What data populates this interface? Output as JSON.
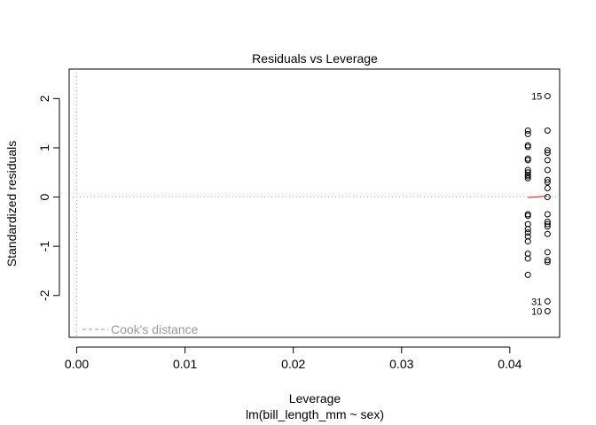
{
  "chart_data": {
    "type": "scatter",
    "title": "Residuals vs Leverage",
    "xlabel": "Leverage",
    "subtitle": "lm(bill_length_mm ~ sex)",
    "ylabel": "Standardized residuals",
    "xlim": [
      -0.0007,
      0.0446
    ],
    "ylim": [
      -2.85,
      2.6
    ],
    "xticks": [
      "0.00",
      "0.01",
      "0.02",
      "0.03",
      "0.04"
    ],
    "xtick_values": [
      0,
      0.01,
      0.02,
      0.03,
      0.04
    ],
    "yticks": [
      "-2",
      "-1",
      "0",
      "1",
      "2"
    ],
    "ytick_values": [
      -2,
      -1,
      0,
      1,
      2
    ],
    "grid": false,
    "reference_lines": [
      "x=0",
      "y=0"
    ],
    "legend": {
      "label": "Cook's distance",
      "position": "bottom-left",
      "line_style": "dashed"
    },
    "colors": {
      "points": "#000000",
      "smoother": "#ff0000",
      "reference": "#aaaaaa",
      "legend": "#999999"
    },
    "groups": [
      {
        "leverage": 0.04167,
        "residuals": [
          1.35,
          1.28,
          1.05,
          1.02,
          0.78,
          0.75,
          0.55,
          0.5,
          0.45,
          0.42,
          0.38,
          -0.35,
          -0.38,
          -0.55,
          -0.65,
          -0.72,
          -0.8,
          -0.9,
          -1.15,
          -1.25,
          -1.58
        ]
      },
      {
        "leverage": 0.04348,
        "residuals": [
          2.05,
          1.35,
          0.95,
          0.9,
          0.75,
          0.55,
          0.35,
          0.3,
          0.18,
          0.0,
          -0.35,
          -0.5,
          -0.55,
          -0.6,
          -0.75,
          -1.12,
          -1.28,
          -1.32,
          -2.12,
          -2.32
        ]
      }
    ],
    "smoother": {
      "x": [
        0.04167,
        0.04348
      ],
      "y": [
        -0.01,
        0.02
      ]
    },
    "point_labels": [
      {
        "text": "15",
        "leverage": 0.04348,
        "residual": 2.05
      },
      {
        "text": "31",
        "leverage": 0.04348,
        "residual": -2.12
      },
      {
        "text": "10",
        "leverage": 0.04348,
        "residual": -2.32
      }
    ]
  }
}
